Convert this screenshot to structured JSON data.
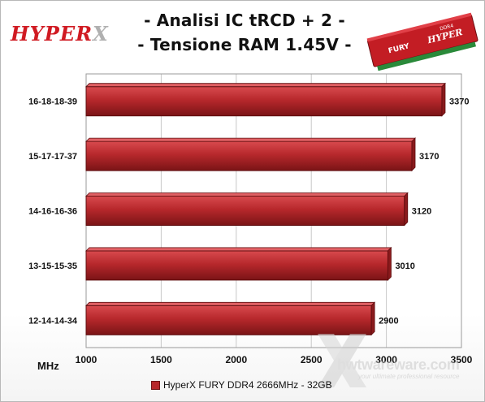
{
  "brand": {
    "logo_text": "HYPER",
    "logo_mark": "X"
  },
  "title": {
    "line1": "- Analisi IC  tRCD + 2 -",
    "line2": "- Tensione RAM 1.45V -"
  },
  "ram_module": {
    "label": "FURY",
    "brand": "HYPER",
    "spec": "DDR4"
  },
  "watermark": {
    "text": "hwtwareware.com",
    "subtitle": "your ultimate professional resource"
  },
  "colors": {
    "bar": "#b7282c",
    "bar_dark": "#7a1416",
    "bar_light": "#d84a4e",
    "grid": "#c8c8c8"
  },
  "chart_data": {
    "type": "bar",
    "orientation": "horizontal",
    "categories": [
      "16-18-18-39",
      "15-17-17-37",
      "14-16-16-36",
      "13-15-15-35",
      "12-14-14-34"
    ],
    "series": [
      {
        "name": "HyperX FURY DDR4 2666MHz - 32GB",
        "values": [
          3370,
          3170,
          3120,
          3010,
          2900
        ]
      }
    ],
    "xlabel": "MHz",
    "xlim": [
      1000,
      3500
    ],
    "xticks": [
      1000,
      1500,
      2000,
      2500,
      3000,
      3500
    ],
    "grid": true,
    "legend_position": "bottom"
  }
}
